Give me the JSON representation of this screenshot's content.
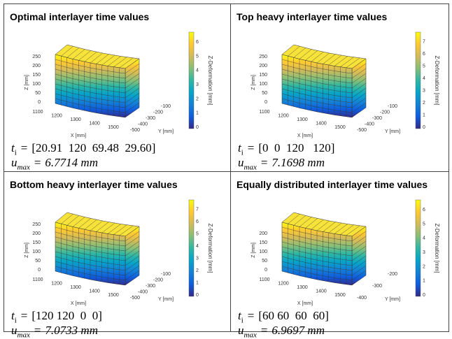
{
  "equation_symbols": {
    "t": "t",
    "t_sub": "i",
    "u": "u",
    "u_sub": "max",
    "equals": "="
  },
  "axis_labels": {
    "z": "Z [mm]",
    "x": "X [mm]",
    "y": "Y [mm]",
    "colorbar": "Z-Deformation [mm]"
  },
  "panels": [
    {
      "title": "Optimal interlayer time values",
      "t_values": "[20.91  120  69.48  29.60]",
      "u_max": "6.7714 mm",
      "plot": {
        "z_ticks": [
          0,
          50,
          100,
          150,
          200,
          250
        ],
        "x_ticks": [
          1100,
          1200,
          1300,
          1400,
          1500
        ],
        "y_ticks": [
          -500,
          -400,
          -300,
          -200,
          -100
        ],
        "colorbar_ticks": [
          0,
          1,
          2,
          3,
          4,
          5,
          6
        ]
      }
    },
    {
      "title": "Top heavy interlayer time values",
      "t_values": "[0  0  120   120]",
      "u_max": "7.1698 mm",
      "plot": {
        "z_ticks": [
          0,
          50,
          100,
          150,
          200,
          250
        ],
        "x_ticks": [
          1100,
          1200,
          1300,
          1400,
          1500
        ],
        "y_ticks": [
          -500,
          -400,
          -300,
          -200,
          -100
        ],
        "colorbar_ticks": [
          0,
          1,
          2,
          3,
          4,
          5,
          6,
          7
        ]
      }
    },
    {
      "title": "Bottom heavy interlayer time values",
      "t_values": "[120 120  0  0]",
      "u_max": "7.0733 mm",
      "plot": {
        "z_ticks": [
          0,
          50,
          100,
          150,
          200,
          250
        ],
        "x_ticks": [
          1100,
          1200,
          1300,
          1400,
          1500
        ],
        "y_ticks": [
          -500,
          -400,
          -300,
          -200,
          -100
        ],
        "colorbar_ticks": [
          0,
          1,
          2,
          3,
          4,
          5,
          6,
          7
        ]
      }
    },
    {
      "title": "Equally distributed interlayer time values",
      "t_values": "[60 60  60  60]",
      "u_max": "6.9697 mm",
      "plot": {
        "z_ticks": [
          0,
          50,
          100,
          150,
          200
        ],
        "x_ticks": [
          1100,
          1200,
          1300,
          1400,
          1500
        ],
        "y_ticks": [
          -400,
          -300,
          -200
        ],
        "colorbar_ticks": [
          0,
          1,
          2,
          3,
          4,
          5,
          6
        ]
      }
    }
  ]
}
